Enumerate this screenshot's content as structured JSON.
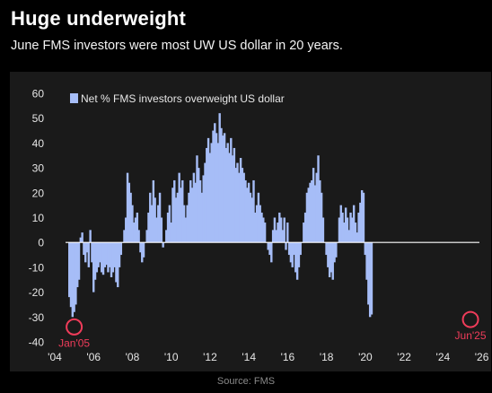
{
  "header": {
    "title": "Huge underweight",
    "subtitle": "June FMS investors were most UW US dollar in 20 years."
  },
  "footer": {
    "source": "Source: FMS"
  },
  "colors": {
    "bar": "#a6bdf7",
    "zero_line": "#ffffff",
    "annotation": "#f03c5a",
    "background": "#000000",
    "panel": "#1a1a1a"
  },
  "chart_data": {
    "type": "bar",
    "title": "Huge underweight",
    "subtitle": "June FMS investors were most UW US dollar in 20 years.",
    "xlabel": "",
    "ylabel": "",
    "ylim": [
      -40,
      60
    ],
    "yticks": [
      60,
      50,
      40,
      30,
      20,
      10,
      0,
      -10,
      -20,
      -30,
      -40
    ],
    "xlim": [
      2004.0,
      2026.25
    ],
    "xticks": [
      {
        "value": 2004,
        "label": "'04"
      },
      {
        "value": 2006,
        "label": "'06"
      },
      {
        "value": 2008,
        "label": "'08"
      },
      {
        "value": 2010,
        "label": "'10"
      },
      {
        "value": 2012,
        "label": "'12"
      },
      {
        "value": 2014,
        "label": "'14"
      },
      {
        "value": 2016,
        "label": "'16"
      },
      {
        "value": 2018,
        "label": "'18"
      },
      {
        "value": 2020,
        "label": "'20"
      },
      {
        "value": 2022,
        "label": "'22"
      },
      {
        "value": 2024,
        "label": "'24"
      },
      {
        "value": 2026,
        "label": "'26"
      }
    ],
    "legend": {
      "placement": "top-left"
    },
    "grid": false,
    "series": [
      {
        "name": "Net % FMS investors overweight US dollar",
        "x_start": 2004.75,
        "x_step": 0.0833,
        "values": [
          -22,
          -26,
          -30,
          -28,
          -25,
          -18,
          -15,
          2,
          4,
          -5,
          -8,
          -4,
          -10,
          5,
          -8,
          -20,
          -15,
          -12,
          -10,
          -8,
          -12,
          -13,
          -10,
          -9,
          -12,
          -10,
          -14,
          -12,
          -10,
          -16,
          -18,
          -10,
          -5,
          0,
          5,
          10,
          28,
          24,
          20,
          15,
          8,
          10,
          12,
          5,
          -4,
          -8,
          -6,
          0,
          5,
          12,
          20,
          15,
          25,
          18,
          10,
          15,
          20,
          10,
          -2,
          0,
          5,
          12,
          15,
          8,
          22,
          25,
          18,
          20,
          28,
          22,
          25,
          15,
          10,
          15,
          20,
          25,
          22,
          28,
          24,
          35,
          30,
          25,
          20,
          27,
          32,
          38,
          42,
          36,
          40,
          45,
          48,
          44,
          40,
          52,
          46,
          43,
          44,
          38,
          40,
          36,
          42,
          35,
          38,
          30,
          32,
          28,
          34,
          30,
          28,
          25,
          22,
          24,
          20,
          18,
          25,
          12,
          15,
          20,
          15,
          12,
          10,
          8,
          0,
          -3,
          -5,
          -8,
          5,
          10,
          5,
          8,
          12,
          10,
          5,
          10,
          -3,
          8,
          -5,
          -8,
          -10,
          -5,
          -12,
          -15,
          -10,
          -5,
          0,
          8,
          12,
          20,
          22,
          24,
          25,
          30,
          23,
          28,
          35,
          25,
          20,
          10,
          0,
          -5,
          -10,
          -14,
          -12,
          -15,
          -8,
          -6,
          0,
          10,
          15,
          12,
          8,
          14,
          10,
          5,
          12,
          10,
          15,
          8,
          4,
          12,
          16,
          21,
          20,
          -5,
          -15,
          -25,
          -30,
          -29
        ]
      }
    ],
    "annotations": [
      {
        "label": "Jan'05",
        "x": 2005.0,
        "y": -34
      },
      {
        "label": "Jun'25",
        "x": 2025.42,
        "y": -31
      }
    ]
  }
}
